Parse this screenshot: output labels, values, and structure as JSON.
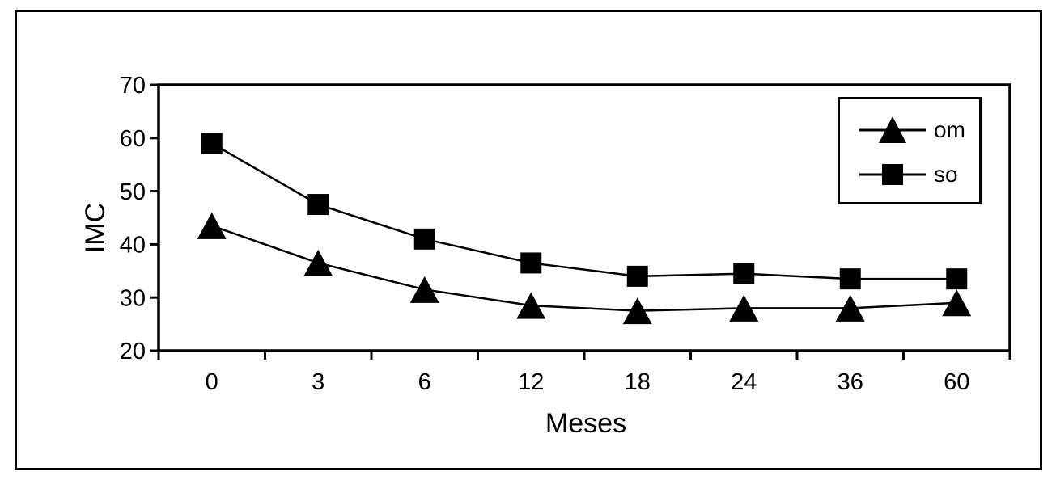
{
  "figure": {
    "background": "#ffffff",
    "ink": "#000000"
  },
  "chart_data": {
    "type": "line",
    "title": "",
    "xlabel": "Meses",
    "ylabel": "IMC",
    "categories": [
      "0",
      "3",
      "6",
      "12",
      "18",
      "24",
      "36",
      "60"
    ],
    "series": [
      {
        "name": "om",
        "marker": "triangle",
        "values": [
          43.5,
          36.5,
          31.5,
          28.5,
          27.5,
          28,
          28,
          29
        ]
      },
      {
        "name": "so",
        "marker": "square",
        "values": [
          59,
          47.5,
          41,
          36.5,
          34,
          34.5,
          33.5,
          33.5
        ]
      }
    ],
    "ylim": [
      20,
      70
    ],
    "yticks": [
      20,
      30,
      40,
      50,
      60,
      70
    ],
    "grid": false,
    "legend_position": "top-right",
    "legend_border": true
  }
}
